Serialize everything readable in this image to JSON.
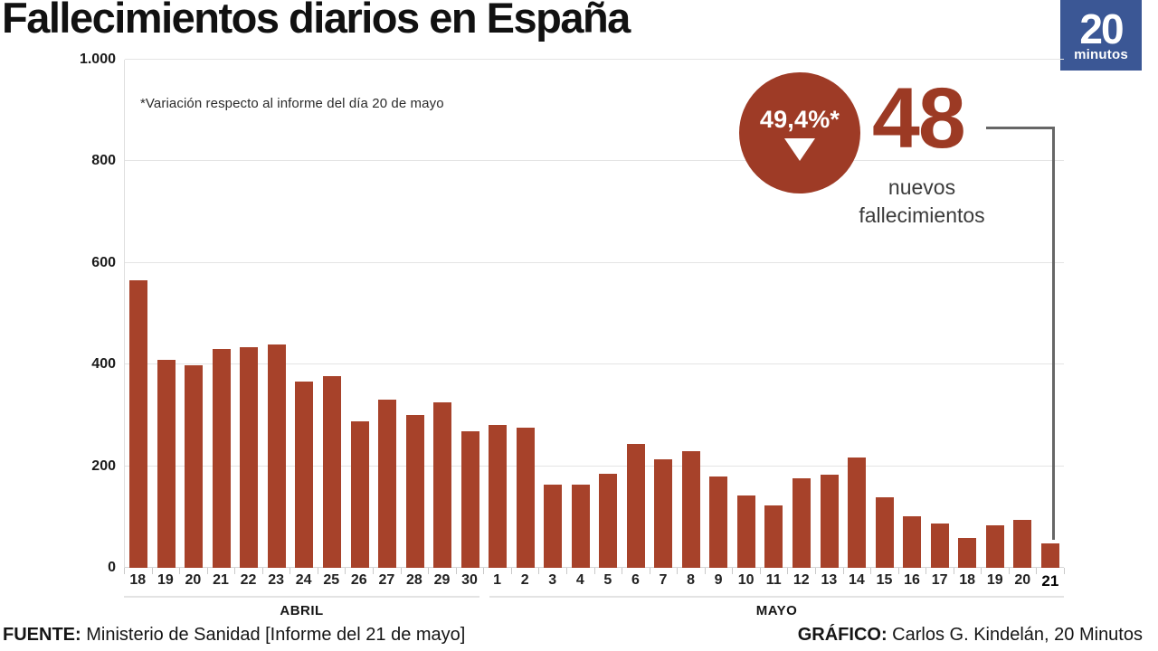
{
  "title": "Fallecimientos diarios en España",
  "logo": {
    "big": "20",
    "small": "minutos"
  },
  "annotation": "*Variación respecto al informe del día 20 de mayo",
  "badge": {
    "text": "49,4%*",
    "direction": "down"
  },
  "highlight": {
    "value": "48",
    "line1": "nuevos",
    "line2": "fallecimientos"
  },
  "footer": {
    "source_label": "FUENTE:",
    "source_text": " Ministerio de Sanidad [Informe del 21 de mayo]",
    "credit_label": "GRÁFICO:",
    "credit_text": " Carlos G. Kindelán, 20 Minutos"
  },
  "colors": {
    "bar": "#a7422a",
    "accent": "#9c3a24",
    "badge_bg": "#9e3b26",
    "logo_bg": "#3b5795",
    "grid": "#e4e4e4"
  },
  "chart_data": {
    "type": "bar",
    "title": "Fallecimientos diarios en España",
    "xlabel": "",
    "ylabel": "",
    "ylim": [
      0,
      1000
    ],
    "grid": true,
    "yticks": [
      {
        "label": "1.000",
        "value": 1000
      },
      {
        "label": "800",
        "value": 800
      },
      {
        "label": "600",
        "value": 600
      },
      {
        "label": "400",
        "value": 400
      },
      {
        "label": "200",
        "value": 200
      },
      {
        "label": "0",
        "value": 0
      }
    ],
    "categories": [
      "18",
      "19",
      "20",
      "21",
      "22",
      "23",
      "24",
      "25",
      "26",
      "27",
      "28",
      "29",
      "30",
      "1",
      "2",
      "3",
      "4",
      "5",
      "6",
      "7",
      "8",
      "9",
      "10",
      "11",
      "12",
      "13",
      "14",
      "15",
      "16",
      "17",
      "18",
      "19",
      "20",
      "21"
    ],
    "values": [
      565,
      410,
      399,
      430,
      435,
      440,
      367,
      378,
      288,
      331,
      301,
      325,
      268,
      281,
      276,
      164,
      164,
      185,
      244,
      213,
      229,
      179,
      143,
      123,
      176,
      184,
      217,
      138,
      102,
      87,
      59,
      83,
      95,
      48
    ],
    "groups": [
      {
        "label": "ABRIL",
        "count": 13
      },
      {
        "label": "MAYO",
        "count": 21
      }
    ],
    "highlight_index": 33,
    "highlight_value": 48,
    "highlight_note": "48 nuevos fallecimientos, -49,4% respecto al informe del día 20 de mayo"
  }
}
